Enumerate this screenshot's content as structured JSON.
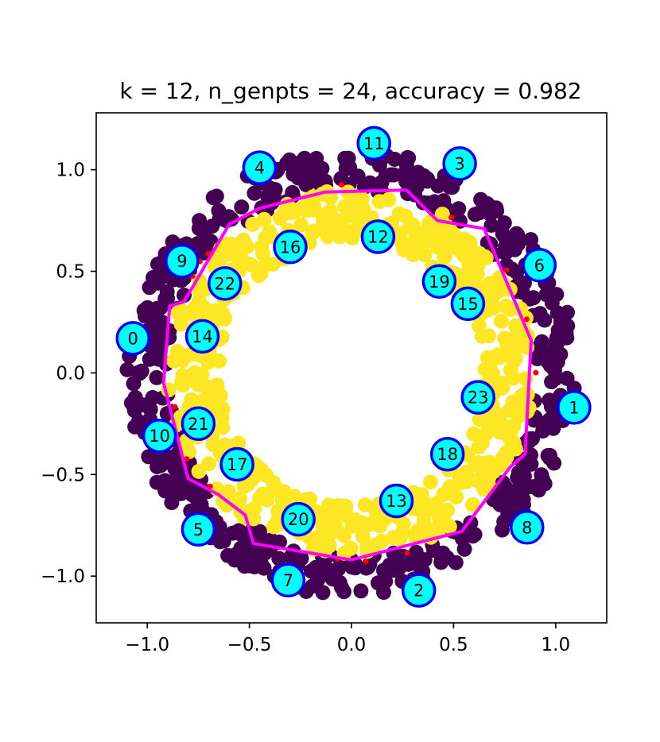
{
  "chart_data": {
    "type": "scatter",
    "title": "k = 12, n_genpts = 24, accuracy = 0.982",
    "xlim": [
      -1.25,
      1.25
    ],
    "ylim": [
      -1.23,
      1.28
    ],
    "xticks": [
      -1.0,
      -0.5,
      0.0,
      0.5,
      1.0
    ],
    "yticks": [
      -1.0,
      -0.5,
      0.0,
      0.5,
      1.0
    ],
    "xtick_labels": [
      "−1.0",
      "−0.5",
      "0.0",
      "0.5",
      "1.0"
    ],
    "ytick_labels": [
      "−1.0",
      "−0.5",
      "0.0",
      "0.5",
      "1.0"
    ],
    "grid": false,
    "colors": {
      "outer_ring": "#440154",
      "inner_ring": "#fde725",
      "misclassified": "#ff0000",
      "boundary": "#ff00ff",
      "genpt_fill": "#00ffff",
      "genpt_edge": "#0000ff"
    },
    "rings": [
      {
        "class": 0,
        "radius_min": 0.9,
        "radius_max": 1.1
      },
      {
        "class": 1,
        "radius_min": 0.65,
        "radius_max": 0.9
      }
    ],
    "boundary": [
      [
        0.27,
        0.9
      ],
      [
        0.42,
        0.75
      ],
      [
        0.65,
        0.71
      ],
      [
        0.88,
        0.16
      ],
      [
        0.85,
        -0.4
      ],
      [
        0.78,
        -0.46
      ],
      [
        0.54,
        -0.78
      ],
      [
        0.0,
        -0.92
      ],
      [
        -0.48,
        -0.84
      ],
      [
        -0.52,
        -0.7
      ],
      [
        -0.65,
        -0.6
      ],
      [
        -0.8,
        -0.52
      ],
      [
        -0.92,
        -0.05
      ],
      [
        -0.89,
        0.33
      ],
      [
        -0.82,
        0.35
      ],
      [
        -0.6,
        0.73
      ],
      [
        -0.45,
        0.81
      ],
      [
        -0.13,
        0.89
      ],
      [
        0.27,
        0.9
      ]
    ],
    "genpts": [
      {
        "id": "0",
        "x": -1.07,
        "y": 0.17
      },
      {
        "id": "1",
        "x": 1.09,
        "y": -0.17
      },
      {
        "id": "2",
        "x": 0.33,
        "y": -1.07
      },
      {
        "id": "3",
        "x": 0.53,
        "y": 1.03
      },
      {
        "id": "4",
        "x": -0.45,
        "y": 1.01
      },
      {
        "id": "5",
        "x": -0.75,
        "y": -0.77
      },
      {
        "id": "6",
        "x": 0.92,
        "y": 0.53
      },
      {
        "id": "7",
        "x": -0.31,
        "y": -1.02
      },
      {
        "id": "8",
        "x": 0.86,
        "y": -0.76
      },
      {
        "id": "9",
        "x": -0.83,
        "y": 0.55
      },
      {
        "id": "10",
        "x": -0.94,
        "y": -0.31
      },
      {
        "id": "11",
        "x": 0.11,
        "y": 1.13
      },
      {
        "id": "12",
        "x": 0.13,
        "y": 0.67
      },
      {
        "id": "13",
        "x": 0.22,
        "y": -0.63
      },
      {
        "id": "14",
        "x": -0.73,
        "y": 0.18
      },
      {
        "id": "15",
        "x": 0.57,
        "y": 0.34
      },
      {
        "id": "16",
        "x": -0.3,
        "y": 0.62
      },
      {
        "id": "17",
        "x": -0.56,
        "y": -0.45
      },
      {
        "id": "18",
        "x": 0.47,
        "y": -0.4
      },
      {
        "id": "19",
        "x": 0.43,
        "y": 0.45
      },
      {
        "id": "20",
        "x": -0.26,
        "y": -0.72
      },
      {
        "id": "21",
        "x": -0.75,
        "y": -0.25
      },
      {
        "id": "22",
        "x": -0.62,
        "y": 0.44
      },
      {
        "id": "23",
        "x": 0.62,
        "y": -0.12
      }
    ]
  }
}
